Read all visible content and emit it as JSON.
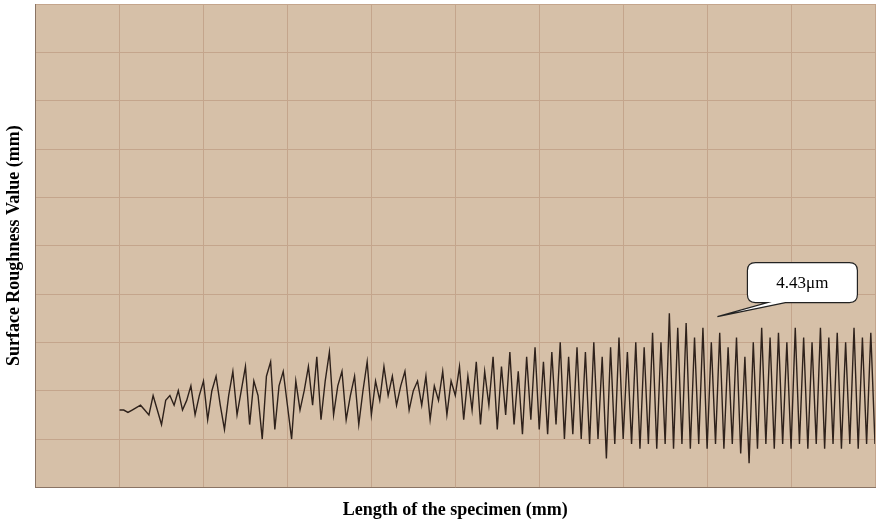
{
  "chart_data": {
    "type": "line",
    "x_label": "Length of the specimen (mm)",
    "y_label": "Surface Roughness Value (mm)",
    "annotation": "4.43μm",
    "color": "#2e211b",
    "grid": true,
    "tick_labels": false,
    "xlim": [
      0,
      100
    ],
    "ylim": [
      0,
      100
    ],
    "xticks": [
      0,
      10,
      20,
      30,
      40,
      50,
      60,
      70,
      80,
      90,
      100
    ],
    "yticks": [
      0,
      10,
      20,
      30,
      40,
      50,
      60,
      70,
      80,
      90,
      100
    ],
    "x": [
      10,
      10.5,
      11,
      11.5,
      12,
      12.5,
      13,
      13.5,
      14,
      14.5,
      15,
      15.5,
      16,
      16.5,
      17,
      17.5,
      18,
      18.5,
      19,
      19.5,
      20,
      20.5,
      21,
      21.5,
      22,
      22.5,
      23,
      23.5,
      24,
      24.5,
      25,
      25.5,
      26,
      26.5,
      27,
      27.5,
      28,
      28.5,
      29,
      29.5,
      30,
      30.5,
      31,
      31.5,
      32,
      32.5,
      33,
      33.5,
      34,
      34.5,
      35,
      35.5,
      36,
      36.5,
      37,
      37.5,
      38,
      38.5,
      39,
      39.5,
      40,
      40.5,
      41,
      41.5,
      42,
      42.5,
      43,
      43.5,
      44,
      44.5,
      45,
      45.5,
      46,
      46.5,
      47,
      47.5,
      48,
      48.5,
      49,
      49.5,
      50,
      50.5,
      51,
      51.5,
      52,
      52.5,
      53,
      53.5,
      54,
      54.5,
      55,
      55.5,
      56,
      56.5,
      57,
      57.5,
      58,
      58.5,
      59,
      59.5,
      60,
      60.5,
      61,
      61.5,
      62,
      62.5,
      63,
      63.5,
      64,
      64.5,
      65,
      65.5,
      66,
      66.5,
      67,
      67.5,
      68,
      68.5,
      69,
      69.5,
      70,
      70.5,
      71,
      71.5,
      72,
      72.5,
      73,
      73.5,
      74,
      74.5,
      75,
      75.5,
      76,
      76.5,
      77,
      77.5,
      78,
      78.5,
      79,
      79.5,
      80,
      80.5,
      81,
      81.5,
      82,
      82.5,
      83,
      83.5,
      84,
      84.5,
      85,
      85.5,
      86,
      86.5,
      87,
      87.5,
      88,
      88.5,
      89,
      89.5,
      90,
      90.5,
      91,
      91.5,
      92,
      92.5,
      93,
      93.5,
      94,
      94.5,
      95,
      95.5,
      96,
      96.5,
      97,
      97.5,
      98,
      98.5,
      99,
      99.5,
      100
    ],
    "values": [
      16,
      16,
      15.5,
      16,
      16.5,
      17,
      16,
      15,
      19,
      16,
      13,
      18,
      19,
      17,
      20,
      16,
      18,
      21,
      15,
      19,
      22,
      14,
      20,
      23,
      17,
      12,
      19,
      24,
      15,
      20,
      25,
      13,
      22,
      19,
      10,
      23,
      26,
      12,
      21,
      24,
      17,
      10,
      22,
      16,
      20,
      25,
      17,
      27,
      14,
      22,
      28,
      15,
      21,
      24,
      14,
      19,
      23,
      13,
      20,
      26,
      15,
      22,
      18,
      25,
      19,
      23,
      17,
      21,
      24,
      16,
      20,
      22,
      17,
      23,
      14,
      21,
      18,
      24,
      15,
      22,
      19,
      25,
      14,
      23,
      16,
      26,
      13,
      24,
      17,
      27,
      12,
      25,
      15,
      28,
      13,
      24,
      11,
      27,
      14,
      29,
      12,
      26,
      11,
      28,
      13,
      30,
      10,
      27,
      11,
      29,
      10,
      28,
      9,
      30,
      10,
      27,
      6,
      29,
      9,
      31,
      10,
      28,
      9,
      30,
      8,
      29,
      9,
      32,
      8,
      30,
      9,
      36,
      8,
      33,
      9,
      34,
      8,
      31,
      9,
      33,
      8,
      30,
      9,
      32,
      8,
      29,
      9,
      31,
      7,
      27,
      5,
      30,
      8,
      33,
      9,
      31,
      8,
      32,
      9,
      30,
      8,
      33,
      9,
      31,
      8,
      30,
      9,
      33,
      8,
      31,
      9,
      32,
      8,
      30,
      9,
      33,
      8,
      31,
      9,
      32,
      9
    ]
  }
}
